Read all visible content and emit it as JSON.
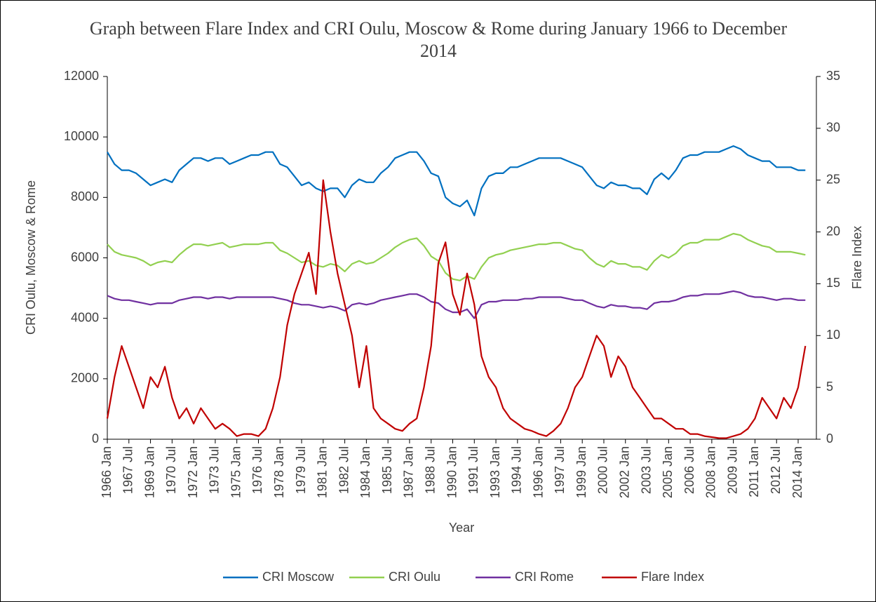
{
  "chart_data": {
    "type": "line",
    "title": "Graph between Flare Index and CRI Oulu, Moscow & Rome during January 1966 to December 2014",
    "x_label": "Year",
    "y_label": "CRI Oulu, Moscow & Rome",
    "y2_label": "Flare Index",
    "categories": [
      "1966 Jan",
      null,
      null,
      "1967 Jul",
      null,
      null,
      "1969 Jan",
      null,
      null,
      "1970 Jul",
      null,
      null,
      "1972 Jan",
      null,
      null,
      "1973 Jul",
      null,
      null,
      "1975 Jan",
      null,
      null,
      "1976 Jul",
      null,
      null,
      "1978 Jan",
      null,
      null,
      "1979 Jul",
      null,
      null,
      "1981 Jan",
      null,
      null,
      "1982 Jul",
      null,
      null,
      "1984 Jan",
      null,
      null,
      "1985 Jul",
      null,
      null,
      "1987 Jan",
      null,
      null,
      "1988 Jul",
      null,
      null,
      "1990 Jan",
      null,
      null,
      "1991 Jul",
      null,
      null,
      "1993 Jan",
      null,
      null,
      "1994 Jul",
      null,
      null,
      "1996 Jan",
      null,
      null,
      "1997 Jul",
      null,
      null,
      "1999 Jan",
      null,
      null,
      "2000 Jul",
      null,
      null,
      "2002 Jan",
      null,
      null,
      "2003 Jul",
      null,
      null,
      "2005 Jan",
      null,
      null,
      "2006 Jul",
      null,
      null,
      "2008 Jan",
      null,
      null,
      "2009 Jul",
      null,
      null,
      "2011 Jan",
      null,
      null,
      "2012 Jul",
      null,
      null,
      "2014 Jan",
      null
    ],
    "series": [
      {
        "name": "CRI Moscow",
        "color": "#0070c0",
        "values": [
          9500,
          9100,
          8900,
          8900,
          8800,
          8600,
          8400,
          8500,
          8600,
          8500,
          8900,
          9100,
          9300,
          9300,
          9200,
          9300,
          9300,
          9100,
          9200,
          9300,
          9400,
          9400,
          9500,
          9500,
          9100,
          9000,
          8700,
          8400,
          8500,
          8300,
          8200,
          8300,
          8300,
          8000,
          8400,
          8600,
          8500,
          8500,
          8800,
          9000,
          9300,
          9400,
          9500,
          9500,
          9200,
          8800,
          8700,
          8000,
          7800,
          7700,
          7900,
          7400,
          8300,
          8700,
          8800,
          8800,
          9000,
          9000,
          9100,
          9200,
          9300,
          9300,
          9300,
          9300,
          9200,
          9100,
          9000,
          8700,
          8400,
          8300,
          8500,
          8400,
          8400,
          8300,
          8300,
          8100,
          8600,
          8800,
          8600,
          8900,
          9300,
          9400,
          9400,
          9500,
          9500,
          9500,
          9600,
          9700,
          9600,
          9400,
          9300,
          9200,
          9200,
          9000,
          9000,
          9000,
          8900,
          8900
        ]
      },
      {
        "name": "CRI Oulu",
        "color": "#92d050",
        "values": [
          6450,
          6200,
          6100,
          6050,
          6000,
          5900,
          5750,
          5850,
          5900,
          5850,
          6100,
          6300,
          6450,
          6450,
          6400,
          6450,
          6500,
          6350,
          6400,
          6450,
          6450,
          6450,
          6500,
          6500,
          6250,
          6150,
          6000,
          5850,
          5900,
          5750,
          5700,
          5800,
          5750,
          5550,
          5800,
          5900,
          5800,
          5850,
          6000,
          6150,
          6350,
          6500,
          6600,
          6650,
          6400,
          6050,
          5900,
          5500,
          5300,
          5250,
          5400,
          5300,
          5700,
          6000,
          6100,
          6150,
          6250,
          6300,
          6350,
          6400,
          6450,
          6450,
          6500,
          6500,
          6400,
          6300,
          6250,
          6000,
          5800,
          5700,
          5900,
          5800,
          5800,
          5700,
          5700,
          5600,
          5900,
          6100,
          6000,
          6150,
          6400,
          6500,
          6500,
          6600,
          6600,
          6600,
          6700,
          6800,
          6750,
          6600,
          6500,
          6400,
          6350,
          6200,
          6200,
          6200,
          6150,
          6100
        ]
      },
      {
        "name": "CRI Rome",
        "color": "#7030a0",
        "values": [
          4750,
          4650,
          4600,
          4600,
          4550,
          4500,
          4450,
          4500,
          4500,
          4500,
          4600,
          4650,
          4700,
          4700,
          4650,
          4700,
          4700,
          4650,
          4700,
          4700,
          4700,
          4700,
          4700,
          4700,
          4650,
          4600,
          4500,
          4450,
          4450,
          4400,
          4350,
          4400,
          4350,
          4250,
          4450,
          4500,
          4450,
          4500,
          4600,
          4650,
          4700,
          4750,
          4800,
          4800,
          4700,
          4550,
          4500,
          4300,
          4200,
          4200,
          4300,
          4000,
          4450,
          4550,
          4550,
          4600,
          4600,
          4600,
          4650,
          4650,
          4700,
          4700,
          4700,
          4700,
          4650,
          4600,
          4600,
          4500,
          4400,
          4350,
          4450,
          4400,
          4400,
          4350,
          4350,
          4300,
          4500,
          4550,
          4550,
          4600,
          4700,
          4750,
          4750,
          4800,
          4800,
          4800,
          4850,
          4900,
          4850,
          4750,
          4700,
          4700,
          4650,
          4600,
          4650,
          4650,
          4600,
          4600
        ]
      },
      {
        "name": "Flare Index",
        "color": "#c00000",
        "axis": "y2",
        "values": [
          2,
          6,
          9,
          7,
          5,
          3,
          6,
          5,
          7,
          4,
          2,
          3,
          1.5,
          3,
          2,
          1,
          1.5,
          1,
          0.3,
          0.5,
          0.5,
          0.3,
          1,
          3,
          6,
          11,
          14,
          16,
          18,
          14,
          25,
          20,
          16,
          13,
          10,
          5,
          9,
          3,
          2,
          1.5,
          1,
          0.8,
          1.5,
          2,
          5,
          9,
          17,
          19,
          14,
          12,
          16,
          13,
          8,
          6,
          5,
          3,
          2,
          1.5,
          1,
          0.8,
          0.5,
          0.3,
          0.8,
          1.5,
          3,
          5,
          6,
          8,
          10,
          9,
          6,
          8,
          7,
          5,
          4,
          3,
          2,
          2,
          1.5,
          1,
          1,
          0.5,
          0.5,
          0.3,
          0.2,
          0.1,
          0.1,
          0.3,
          0.5,
          1,
          2,
          4,
          3,
          2,
          4,
          3,
          5,
          9
        ]
      }
    ],
    "ylim": [
      0,
      12000
    ],
    "yticks": [
      0,
      2000,
      4000,
      6000,
      8000,
      10000,
      12000
    ],
    "y2lim": [
      0,
      35
    ],
    "y2ticks": [
      0,
      5,
      10,
      15,
      20,
      25,
      30,
      35
    ],
    "grid": false,
    "legend": "bottom"
  }
}
